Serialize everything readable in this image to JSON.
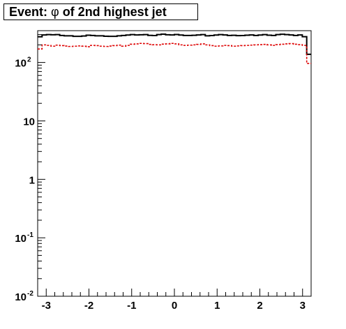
{
  "title": {
    "prefix": "Event: ",
    "symbol": "φ",
    "suffix": " of 2nd highest jet"
  },
  "chart_data": {
    "type": "histogram",
    "x_range": [
      -3.2,
      3.2
    ],
    "ylim": [
      0.01,
      350
    ],
    "y_scale": "log",
    "grid": false,
    "legend": "none",
    "x_tick_labels": [
      "-3",
      "-2",
      "-1",
      "0",
      "1",
      "2",
      "3"
    ],
    "y_tick_labels": [
      {
        "base": "10",
        "exp": "-2"
      },
      {
        "base": "10",
        "exp": "-1"
      },
      {
        "base": "1",
        "exp": ""
      },
      {
        "base": "10",
        "exp": ""
      },
      {
        "base": "10",
        "exp": "2"
      }
    ],
    "series": [
      {
        "line_style": "solid",
        "color": "#000000",
        "bins": 62,
        "values": [
          275,
          296,
          300,
          298,
          300,
          290,
          286,
          286,
          280,
          280,
          284,
          293,
          290,
          286,
          286,
          281,
          280,
          280,
          286,
          290,
          295,
          300,
          296,
          298,
          300,
          291,
          289,
          300,
          305,
          298,
          296,
          301,
          295,
          290,
          290,
          292,
          296,
          300,
          286,
          289,
          295,
          300,
          296,
          290,
          292,
          288,
          289,
          293,
          296,
          290,
          295,
          300,
          293,
          290,
          300,
          304,
          300,
          296,
          290,
          296,
          276,
          138
        ]
      },
      {
        "line_style": "dashed",
        "color": "#dd0000",
        "bins": 62,
        "values": [
          170,
          200,
          196,
          190,
          198,
          194,
          191,
          188,
          190,
          192,
          190,
          186,
          196,
          194,
          190,
          188,
          191,
          194,
          198,
          190,
          196,
          205,
          208,
          212,
          210,
          204,
          201,
          200,
          206,
          208,
          212,
          208,
          200,
          196,
          198,
          200,
          204,
          208,
          200,
          194,
          190,
          192,
          196,
          194,
          190,
          192,
          194,
          196,
          198,
          200,
          202,
          204,
          200,
          196,
          202,
          205,
          208,
          210,
          205,
          202,
          196,
          96
        ]
      }
    ]
  }
}
